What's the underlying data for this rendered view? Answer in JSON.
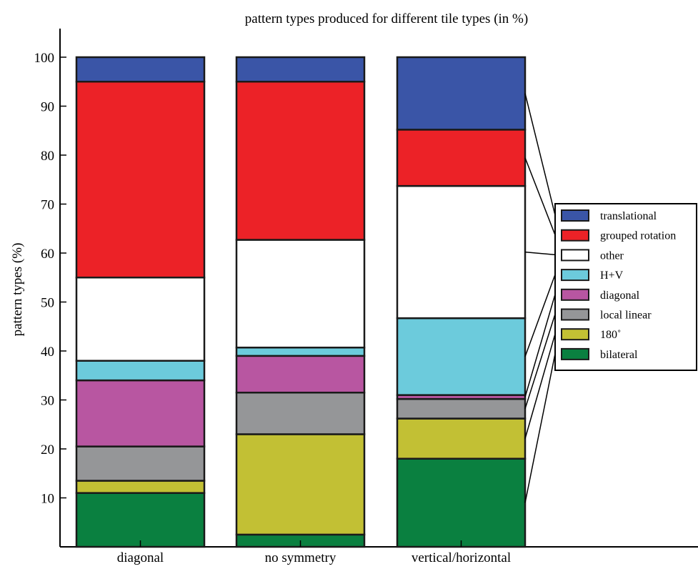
{
  "chart_data": {
    "type": "bar",
    "stacked": true,
    "title": "pattern types produced for different tile types (in %)",
    "ylabel": "pattern types (%)",
    "xlabel": "",
    "ylim": [
      0,
      105
    ],
    "yticks": [
      10,
      20,
      30,
      40,
      50,
      60,
      70,
      80,
      90,
      100
    ],
    "categories": [
      "diagonal",
      "no symmetry",
      "vertical/horizontal"
    ],
    "series": [
      {
        "name": "bilateral",
        "color": "#0a8040",
        "values": [
          11,
          2.5,
          18
        ]
      },
      {
        "name": "180˚",
        "color": "#c2c034",
        "values": [
          2.5,
          20.5,
          8.2
        ]
      },
      {
        "name": "local linear",
        "color": "#959698",
        "values": [
          7,
          8.5,
          4
        ]
      },
      {
        "name": "diagonal",
        "color": "#b856a1",
        "values": [
          13.5,
          7.5,
          0.8
        ]
      },
      {
        "name": "H+V",
        "color": "#6ccbdc",
        "values": [
          4,
          1.7,
          15.7
        ]
      },
      {
        "name": "other",
        "color": "#ffffff",
        "values": [
          17,
          22,
          27
        ]
      },
      {
        "name": "grouped rotation",
        "color": "#ec2227",
        "values": [
          40,
          32.3,
          11.5
        ]
      },
      {
        "name": "translational",
        "color": "#3a55a7",
        "values": [
          5,
          5,
          14.8
        ]
      }
    ],
    "legend": {
      "position": "right"
    },
    "grid": false
  }
}
